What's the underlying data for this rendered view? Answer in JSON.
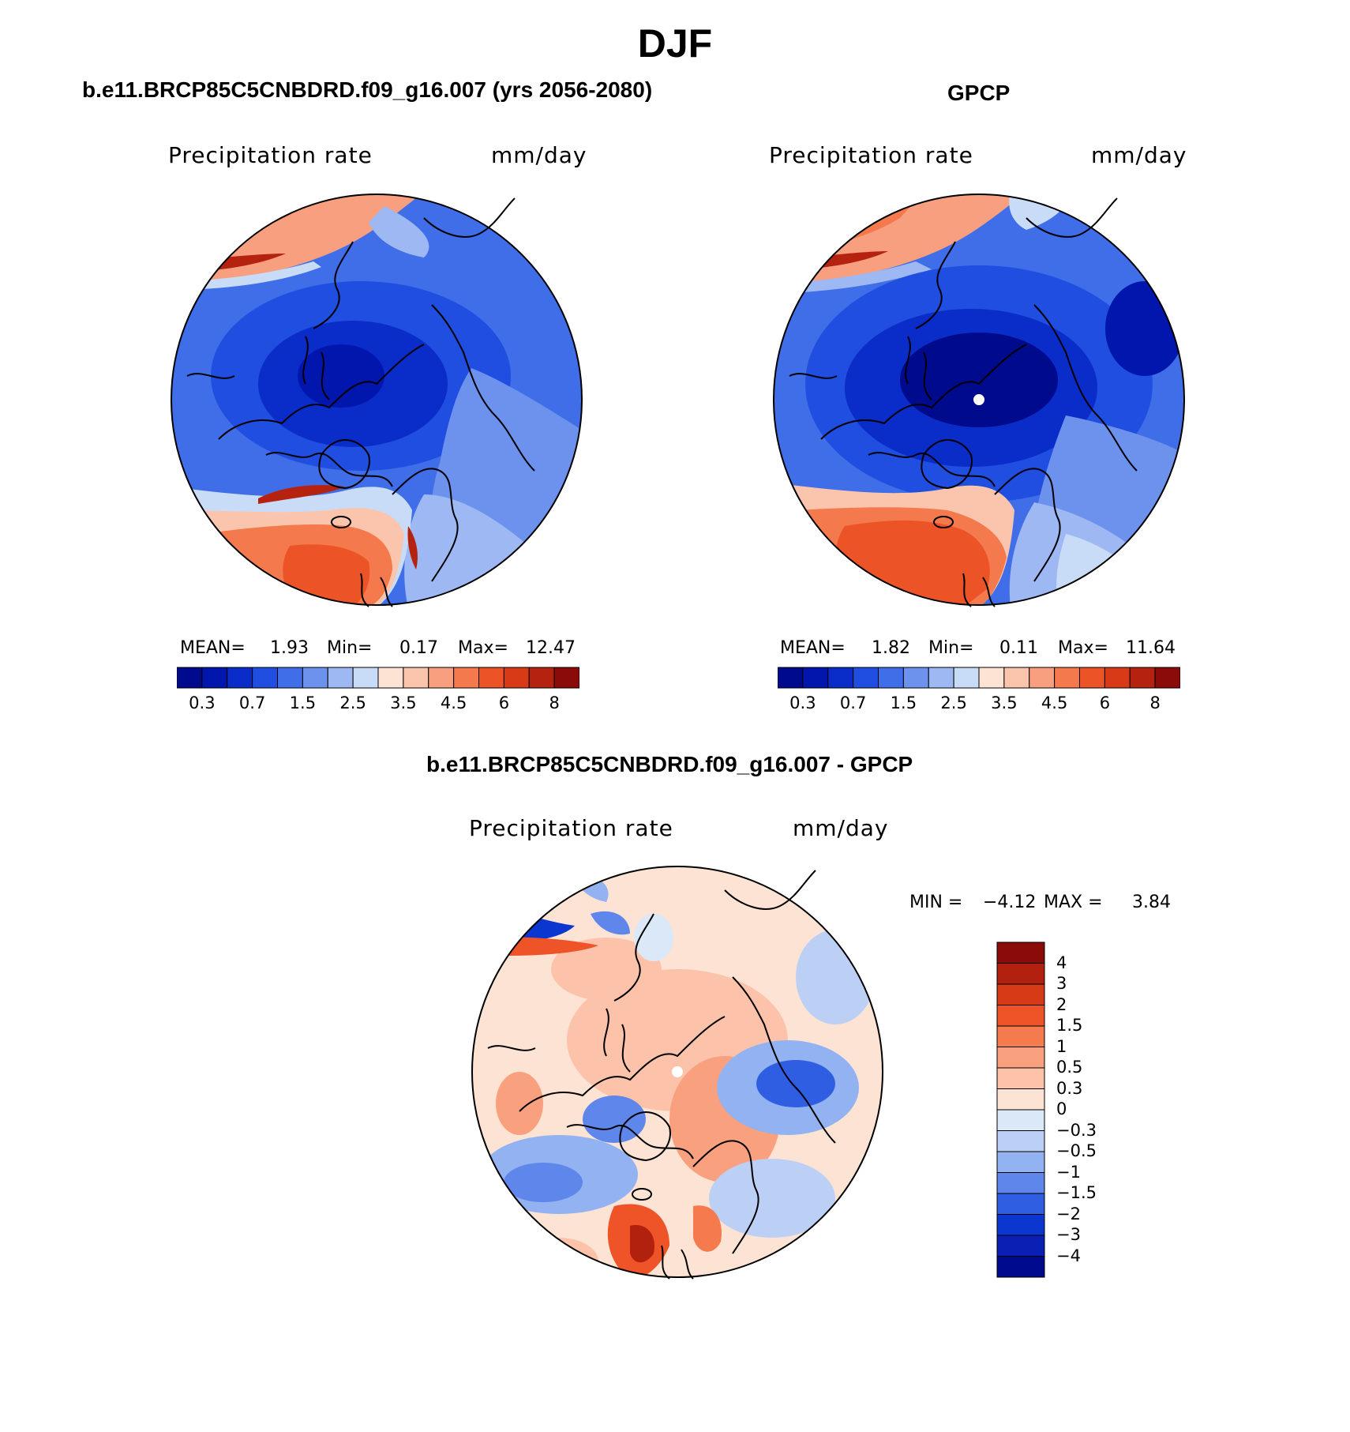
{
  "figure_title": "DJF",
  "panels": [
    {
      "title": "b.e11.BRCP85C5CNBDRD.f09_g16.007 (yrs 2056-2080)",
      "variable": "Precipitation rate",
      "units": "mm/day",
      "stats": {
        "mean_label": "MEAN=",
        "mean": "1.93",
        "min_label": "Min=",
        "min": "0.17",
        "max_label": "Max=",
        "max": "12.47"
      }
    },
    {
      "title": "GPCP",
      "variable": "Precipitation rate",
      "units": "mm/day",
      "stats": {
        "mean_label": "MEAN=",
        "mean": "1.82",
        "min_label": "Min=",
        "min": "0.11",
        "max_label": "Max=",
        "max": "11.64"
      }
    },
    {
      "title": "b.e11.BRCP85C5CNBDRD.f09_g16.007 - GPCP",
      "variable": "Precipitation rate",
      "units": "mm/day",
      "stats": {
        "min_label": "MIN =",
        "min": "−4.12",
        "max_label": "MAX =",
        "max": "3.84"
      }
    }
  ],
  "abs_colorbar": {
    "colors": [
      "#000a8c",
      "#0016ad",
      "#0a2cc8",
      "#1f4ee0",
      "#3f6ee8",
      "#6d92ee",
      "#9db8f2",
      "#c9dcf7",
      "#fde3d3",
      "#fbc5ad",
      "#f89f7f",
      "#f47a4d",
      "#ec5427",
      "#d83a17",
      "#b52310",
      "#8b0b09"
    ],
    "tick_labels": [
      "0.3",
      "0.7",
      "1.5",
      "2.5",
      "3.5",
      "4.5",
      "6",
      "8"
    ]
  },
  "diff_colorbar": {
    "colors": [
      "#8b0b09",
      "#b2200e",
      "#d63a16",
      "#ee5427",
      "#f57a4d",
      "#f9a07f",
      "#fcc3aa",
      "#fde3d3",
      "#dbe8f8",
      "#bcd0f5",
      "#93b2f1",
      "#5f86eb",
      "#2f5ee3",
      "#0b36cf",
      "#0a20b4",
      "#000a8c"
    ],
    "tick_labels": [
      "4",
      "3",
      "2",
      "1.5",
      "1",
      "0.5",
      "0.3",
      "0",
      "−0.3",
      "−0.5",
      "−1",
      "−1.5",
      "−2",
      "−3",
      "−4"
    ]
  }
}
